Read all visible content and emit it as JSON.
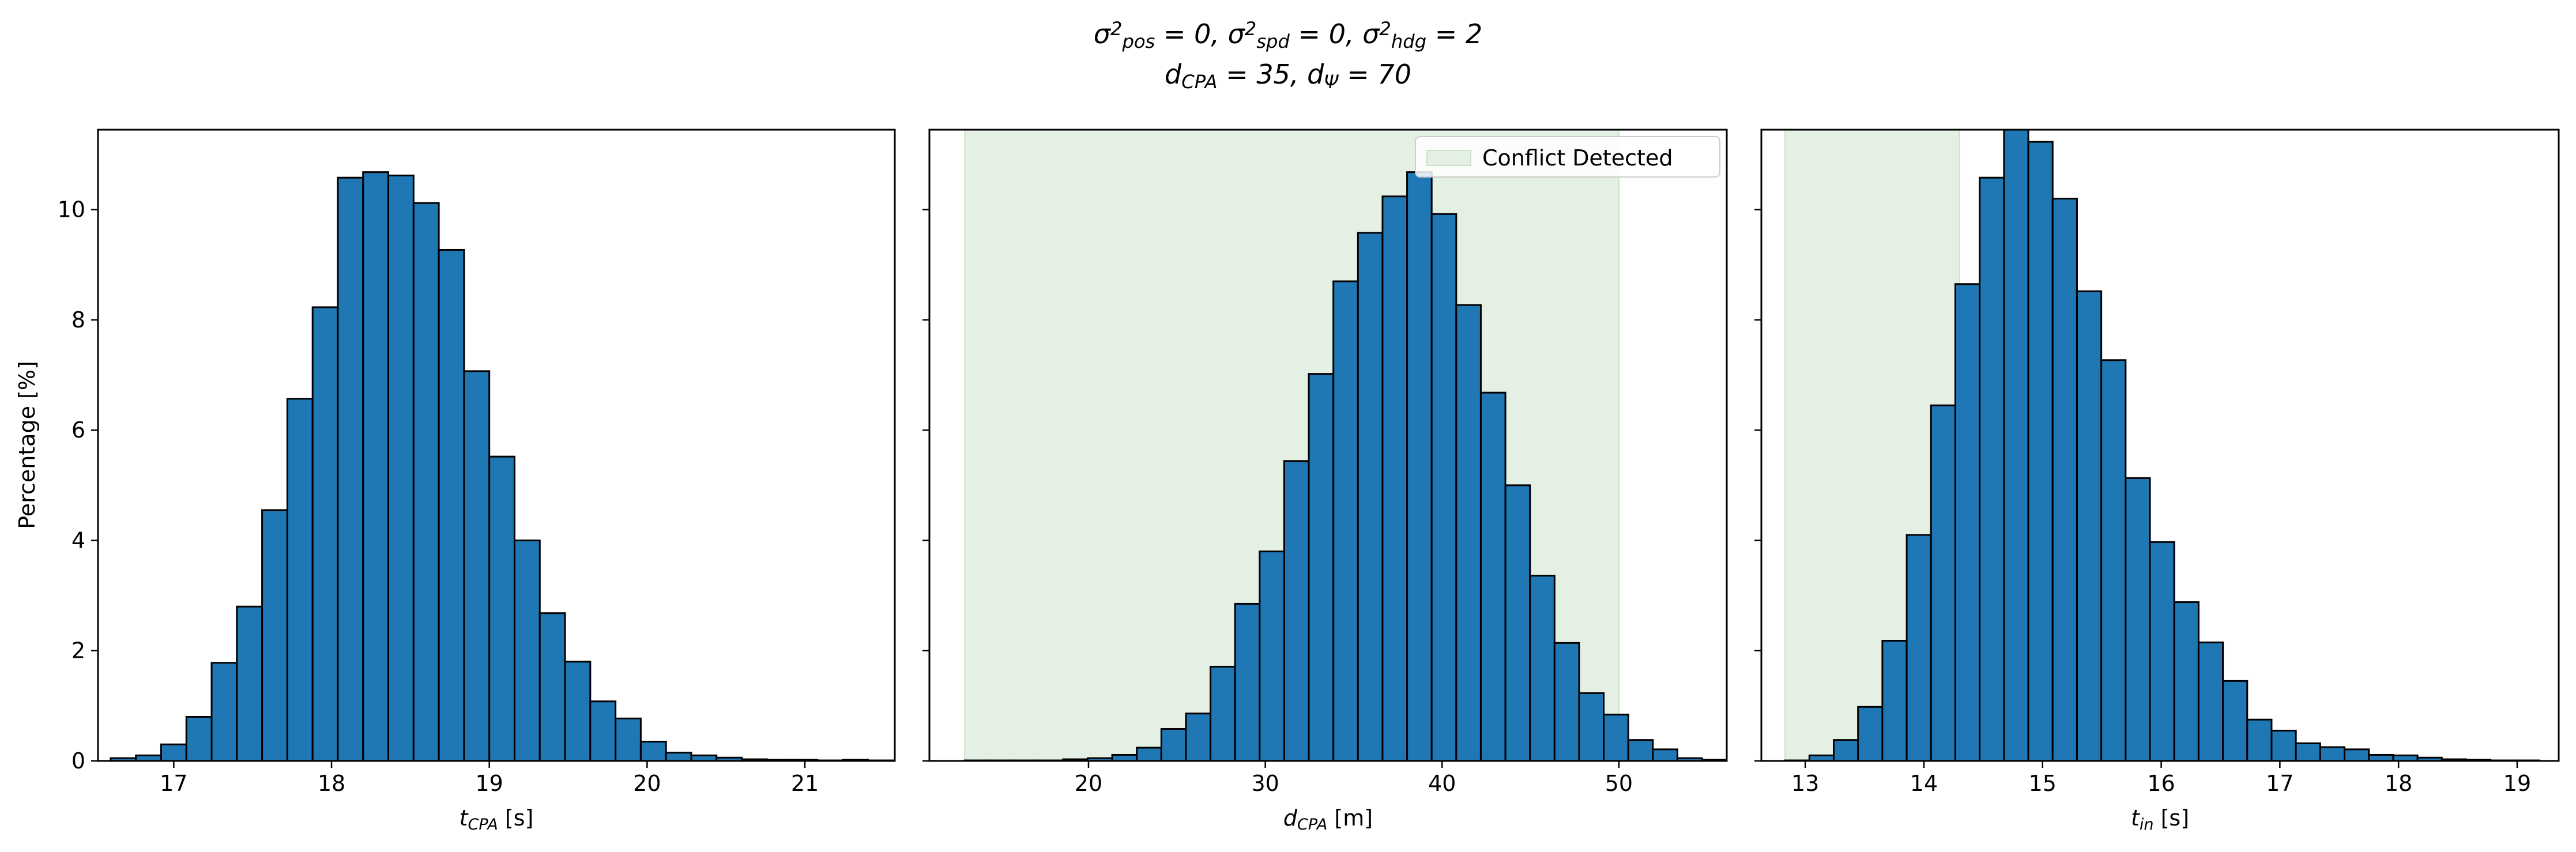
{
  "title": {
    "line1": [
      {
        "t": "σ"
      },
      {
        "sup": "2"
      },
      {
        "sub": "pos"
      },
      {
        "t": " = 0, σ"
      },
      {
        "sup": "2"
      },
      {
        "sub": "spd"
      },
      {
        "t": " = 0, σ"
      },
      {
        "sup": "2"
      },
      {
        "sub": "hdg"
      },
      {
        "t": " = 2"
      }
    ],
    "line2": [
      {
        "t": "d"
      },
      {
        "sub": "CPA"
      },
      {
        "t": " = 35, d"
      },
      {
        "sub": "Ψ"
      },
      {
        "t": " = 70"
      }
    ]
  },
  "ylabel": "Percentage [%]",
  "colors": {
    "bar": "#1f77b4",
    "bar_edge": "#000000",
    "shade": "#e4f0e4",
    "shade_edge": "#c9e2c9"
  },
  "chart_data": [
    {
      "type": "bar",
      "xlabel": {
        "main": "t",
        "sub": "CPA",
        "unit": " [s]"
      },
      "xlim": [
        16.52,
        21.57
      ],
      "ylim": [
        0,
        11.45
      ],
      "xticks": [
        17,
        18,
        19,
        20,
        21
      ],
      "yticks": [
        0,
        2,
        4,
        6,
        8,
        10
      ],
      "bin_start": 16.6,
      "bin_width": 0.16,
      "values": [
        0.05,
        0.1,
        0.3,
        0.8,
        1.78,
        2.8,
        4.55,
        6.57,
        8.23,
        10.58,
        10.68,
        10.62,
        10.12,
        9.27,
        7.07,
        5.52,
        4.0,
        2.68,
        1.8,
        1.08,
        0.77,
        0.35,
        0.15,
        0.1,
        0.06,
        0.03,
        0.02,
        0.02,
        0.01,
        0.02,
        0.01
      ],
      "shade": null,
      "legend": null
    },
    {
      "type": "bar",
      "xlabel": {
        "main": "d",
        "sub": "CPA",
        "unit": " [m]"
      },
      "xlim": [
        11.0,
        56.1
      ],
      "ylim": [
        0,
        11.45
      ],
      "xticks": [
        20,
        30,
        40,
        50
      ],
      "yticks": [
        0,
        2,
        4,
        6,
        8,
        10
      ],
      "bin_start": 13.0,
      "bin_width": 1.39,
      "values": [
        0.01,
        0.01,
        0.01,
        0.01,
        0.03,
        0.05,
        0.11,
        0.24,
        0.58,
        0.86,
        1.71,
        2.85,
        3.8,
        5.44,
        7.02,
        8.7,
        9.58,
        10.24,
        10.68,
        9.92,
        8.27,
        6.68,
        5.0,
        3.36,
        2.14,
        1.23,
        0.84,
        0.38,
        0.21,
        0.05,
        0.02
      ],
      "shade": [
        13.0,
        50.0
      ],
      "legend": "Conflict Detected"
    },
    {
      "type": "bar",
      "xlabel": {
        "main": "t",
        "sub": "in",
        "unit": " [s]"
      },
      "xlim": [
        12.63,
        19.35
      ],
      "ylim": [
        0,
        11.45
      ],
      "xticks": [
        13,
        14,
        15,
        16,
        17,
        18,
        19
      ],
      "yticks": [
        0,
        2,
        4,
        6,
        8,
        10
      ],
      "bin_start": 12.83,
      "bin_width": 0.205,
      "values": [
        0.01,
        0.1,
        0.38,
        0.98,
        2.18,
        4.1,
        6.45,
        8.65,
        10.58,
        11.55,
        11.23,
        10.2,
        8.52,
        7.27,
        5.13,
        3.97,
        2.88,
        2.15,
        1.45,
        0.75,
        0.55,
        0.32,
        0.25,
        0.21,
        0.11,
        0.1,
        0.06,
        0.03,
        0.02,
        0.01,
        0.01
      ],
      "shade": [
        12.83,
        14.3
      ],
      "legend": null
    }
  ]
}
